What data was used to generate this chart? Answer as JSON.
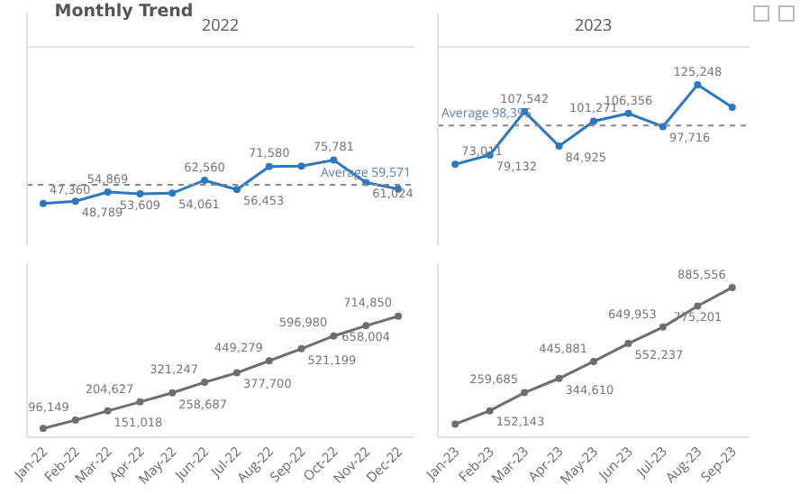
{
  "chart_data": [
    {
      "type": "line",
      "title": "Monthly Trend",
      "subtitle": "2022",
      "categories": [
        null,
        null,
        null,
        null,
        null,
        null,
        null,
        null,
        null,
        null,
        null,
        null
      ],
      "ylim": [
        20000,
        150000
      ],
      "tick_labels": false,
      "marker": "circle",
      "series": [
        {
          "color": "#2a78c0",
          "values": [
            47360,
            48789,
            54869,
            53609,
            54061,
            62560,
            56453,
            71580,
            71920,
            75781,
            61024,
            56846
          ],
          "value_labels": [
            "47,360",
            "48,789",
            "54,869",
            "53,609",
            "54,061",
            "62,560",
            "56,453",
            "71,580",
            null,
            "75,781",
            "61,024",
            null
          ]
        }
      ],
      "ref_lines": [
        {
          "axis": "y",
          "value": 59571,
          "label": "Average 59,571",
          "color": "#888888",
          "line_style": "dotted"
        }
      ]
    },
    {
      "type": "line",
      "subtitle": "2023",
      "categories": [
        null,
        null,
        null,
        null,
        null,
        null,
        null,
        null,
        null
      ],
      "ylim": [
        20000,
        150000
      ],
      "tick_labels": false,
      "marker": "circle",
      "series": [
        {
          "color": "#2a78c0",
          "values": [
            73011,
            79132,
            107542,
            84925,
            101271,
            106356,
            97716,
            125248,
            110355
          ],
          "value_labels": [
            "73,011",
            "79,132",
            "107,542",
            "84,925",
            "101,271",
            "106,356",
            "97,716",
            "125,248",
            null
          ]
        }
      ],
      "ref_lines": [
        {
          "axis": "y",
          "value": 98395,
          "label": "Average 98,395",
          "color": "#888888",
          "line_style": "dotted"
        }
      ]
    },
    {
      "type": "line",
      "categories": [
        "Jan-22",
        "Feb-22",
        "Mar-22",
        "Apr-22",
        "May-22",
        "Jun-22",
        "Jul-22",
        "Aug-22",
        "Sep-22",
        "Oct-22",
        "Nov-22",
        "Dec-22"
      ],
      "ylim": [
        0,
        1030000
      ],
      "tick_labels": "x",
      "marker": "circle",
      "series": [
        {
          "color": "#6e6e6e",
          "values": [
            47360,
            96149,
            151018,
            204627,
            258687,
            321247,
            377700,
            449279,
            521199,
            596980,
            658004,
            714850
          ],
          "value_labels": [
            null,
            "96,149",
            "151,018",
            "204,627",
            "258,687",
            "321,247",
            "377,700",
            "449,279",
            "521,199",
            "596,980",
            "658,004",
            "714,850"
          ]
        }
      ]
    },
    {
      "type": "line",
      "categories": [
        "Jan-23",
        "Feb-23",
        "Mar-23",
        "Apr-23",
        "May-23",
        "Jun-23",
        "Jul-23",
        "Aug-23",
        "Sep-23"
      ],
      "ylim": [
        0,
        1030000
      ],
      "tick_labels": "x",
      "marker": "circle",
      "series": [
        {
          "color": "#6e6e6e",
          "values": [
            73011,
            152143,
            259685,
            344610,
            445881,
            552237,
            649953,
            775201,
            885556
          ],
          "value_labels": [
            null,
            "152,143",
            "259,685",
            "344,610",
            "445,881",
            "552,237",
            "649,953",
            "775,201",
            "885,556"
          ]
        }
      ]
    }
  ]
}
